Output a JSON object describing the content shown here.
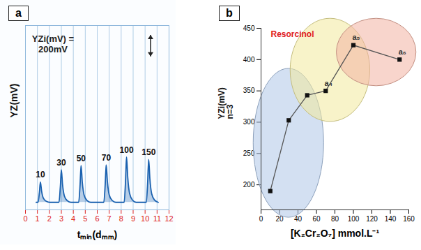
{
  "chart_data": [
    {
      "type": "line",
      "panel": "a",
      "xlabel": "tₘᵢₙ(dₘₘ)",
      "ylabel": "YZ(mV)",
      "color": "#1b62b0",
      "grid": true,
      "tick_labels": "x",
      "x": [
        0.9,
        1.05,
        1.17,
        1.25,
        1.35,
        1.5,
        1.75,
        2.05,
        2.8,
        2.92,
        3.0,
        3.1,
        3.25,
        3.5,
        3.8,
        4.45,
        4.57,
        4.65,
        4.75,
        4.9,
        5.15,
        5.45,
        6.55,
        6.67,
        6.75,
        6.85,
        7.0,
        7.25,
        7.55,
        8.25,
        8.37,
        8.45,
        8.55,
        8.7,
        8.95,
        9.25,
        10.1,
        10.22,
        10.3,
        10.4,
        10.55,
        10.8,
        11.1
      ],
      "values": [
        0,
        0,
        95,
        190,
        105,
        38,
        10,
        0,
        0,
        152,
        303,
        167,
        61,
        15,
        0,
        0,
        172,
        343,
        189,
        69,
        17,
        0,
        0,
        175,
        350,
        193,
        70,
        18,
        0,
        0,
        212,
        423,
        233,
        85,
        21,
        0,
        0,
        200,
        400,
        220,
        80,
        20,
        0
      ],
      "xlim": [
        0,
        12
      ],
      "xticks": [
        0,
        1,
        2,
        3,
        4,
        5,
        6,
        7,
        8,
        9,
        10,
        11,
        12
      ],
      "ylim": [
        -70,
        1650
      ],
      "annotations": [
        {
          "x": 1.25,
          "y": 190,
          "text": "10"
        },
        {
          "x": 3.0,
          "y": 303,
          "text": "30"
        },
        {
          "x": 4.65,
          "y": 343,
          "text": "50"
        },
        {
          "x": 6.75,
          "y": 350,
          "text": "70"
        },
        {
          "x": 8.45,
          "y": 423,
          "text": "100"
        },
        {
          "x": 10.3,
          "y": 400,
          "text": "150"
        }
      ],
      "scale_bar": {
        "value": 200,
        "label": "YZi(mV) =\n200mV"
      }
    },
    {
      "type": "line",
      "panel": "b",
      "title": "Resorcinol",
      "xlabel": "[K₂Cr₂O₇] mmol.L⁻¹",
      "ylabel": "YZi(mV)\nn=3",
      "color": "#555555",
      "marker": "square",
      "grid": false,
      "x": [
        10,
        30,
        50,
        70,
        100,
        150
      ],
      "values": [
        190,
        303,
        343,
        350,
        423,
        400
      ],
      "point_labels": [
        null,
        null,
        null,
        "a₄",
        "a₅",
        "a₆"
      ],
      "xlim": [
        0,
        160
      ],
      "xticks": [
        0,
        20,
        40,
        60,
        80,
        100,
        120,
        140,
        160
      ],
      "ylim": [
        160,
        450
      ],
      "yticks": [
        200,
        250,
        300,
        350,
        400,
        450
      ],
      "regions": [
        {
          "x": [
            10,
            30,
            50
          ],
          "color": "#aec6e8"
        },
        {
          "x": [
            50,
            70,
            100
          ],
          "color": "#f3ea9c"
        },
        {
          "x": [
            100,
            150
          ],
          "color": "#f2b2a2"
        }
      ]
    }
  ]
}
